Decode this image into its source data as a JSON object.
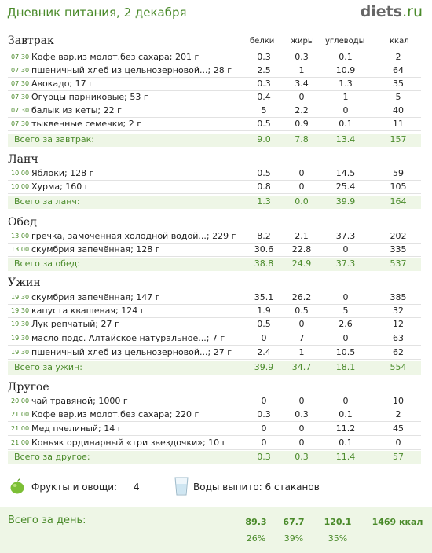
{
  "header": {
    "title": "Дневник питания, 2 декабря",
    "logo_main": "diets",
    "logo_tld": ".ru"
  },
  "columns": {
    "protein": "белки",
    "fat": "жиры",
    "carbs": "углеводы",
    "kcal": "ккал"
  },
  "breakfast": {
    "title": "Завтрак",
    "items": [
      {
        "time": "07:30",
        "name": "Кофе вар.из молот.без сахара; 201 г",
        "p": "0.3",
        "f": "0.3",
        "c": "0.1",
        "k": "2"
      },
      {
        "time": "07:30",
        "name": "пшеничный хлеб из цельнозерновой...; 28 г",
        "p": "2.5",
        "f": "1",
        "c": "10.9",
        "k": "64"
      },
      {
        "time": "07:30",
        "name": "Авокадо; 17 г",
        "p": "0.3",
        "f": "3.4",
        "c": "1.3",
        "k": "35"
      },
      {
        "time": "07:30",
        "name": "Огурцы парниковые; 53 г",
        "p": "0.4",
        "f": "0",
        "c": "1",
        "k": "5"
      },
      {
        "time": "07:30",
        "name": "балык из кеты; 22 г",
        "p": "5",
        "f": "2.2",
        "c": "0",
        "k": "40"
      },
      {
        "time": "07:30",
        "name": "тыквенные семечки; 2 г",
        "p": "0.5",
        "f": "0.9",
        "c": "0.1",
        "k": "11"
      }
    ],
    "total": {
      "label": "Всего за завтрак:",
      "p": "9.0",
      "f": "7.8",
      "c": "13.4",
      "k": "157"
    }
  },
  "lunch": {
    "title": "Ланч",
    "items": [
      {
        "time": "10:00",
        "name": "Яблоки; 128 г",
        "p": "0.5",
        "f": "0",
        "c": "14.5",
        "k": "59"
      },
      {
        "time": "10:00",
        "name": "Хурма; 160 г",
        "p": "0.8",
        "f": "0",
        "c": "25.4",
        "k": "105"
      }
    ],
    "total": {
      "label": "Всего за ланч:",
      "p": "1.3",
      "f": "0.0",
      "c": "39.9",
      "k": "164"
    }
  },
  "dinner": {
    "title": "Обед",
    "items": [
      {
        "time": "13:00",
        "name": "гречка, замоченная холодной водой...; 229 г",
        "p": "8.2",
        "f": "2.1",
        "c": "37.3",
        "k": "202"
      },
      {
        "time": "13:00",
        "name": "скумбрия запечённая; 128 г",
        "p": "30.6",
        "f": "22.8",
        "c": "0",
        "k": "335"
      }
    ],
    "total": {
      "label": "Всего за обед:",
      "p": "38.8",
      "f": "24.9",
      "c": "37.3",
      "k": "537"
    }
  },
  "supper": {
    "title": "Ужин",
    "items": [
      {
        "time": "19:30",
        "name": "скумбрия запечённая; 147 г",
        "p": "35.1",
        "f": "26.2",
        "c": "0",
        "k": "385"
      },
      {
        "time": "19:30",
        "name": "капуста квашеная; 124 г",
        "p": "1.9",
        "f": "0.5",
        "c": "5",
        "k": "32"
      },
      {
        "time": "19:30",
        "name": "Лук репчатый; 27 г",
        "p": "0.5",
        "f": "0",
        "c": "2.6",
        "k": "12"
      },
      {
        "time": "19:30",
        "name": "масло подс. Алтайское натуральное...; 7 г",
        "p": "0",
        "f": "7",
        "c": "0",
        "k": "63"
      },
      {
        "time": "19:30",
        "name": "пшеничный хлеб из цельнозерновой...; 27 г",
        "p": "2.4",
        "f": "1",
        "c": "10.5",
        "k": "62"
      }
    ],
    "total": {
      "label": "Всего за ужин:",
      "p": "39.9",
      "f": "34.7",
      "c": "18.1",
      "k": "554"
    }
  },
  "other": {
    "title": "Другое",
    "items": [
      {
        "time": "20:00",
        "name": "чай травяной; 1000 г",
        "p": "0",
        "f": "0",
        "c": "0",
        "k": "10"
      },
      {
        "time": "21:00",
        "name": "Кофе вар.из молот.без сахара; 220 г",
        "p": "0.3",
        "f": "0.3",
        "c": "0.1",
        "k": "2"
      },
      {
        "time": "21:00",
        "name": "Мед пчелиный; 14 г",
        "p": "0",
        "f": "0",
        "c": "11.2",
        "k": "45"
      },
      {
        "time": "21:00",
        "name": "Коньяк ординарный «три звездочки»; 10 г",
        "p": "0",
        "f": "0",
        "c": "0.1",
        "k": "0"
      }
    ],
    "total": {
      "label": "Всего за другое:",
      "p": "0.3",
      "f": "0.3",
      "c": "11.4",
      "k": "57"
    }
  },
  "extras": {
    "fruits_label": "Фрукты и овощи:",
    "fruits_value": "4",
    "water_label": "Воды выпито: 6 стаканов"
  },
  "day_total": {
    "label": "Всего за день:",
    "p": "89.3",
    "f": "67.7",
    "c": "120.1",
    "kcal": "1469 ккал",
    "p_pct": "26%",
    "f_pct": "39%",
    "c_pct": "35%"
  },
  "colors": {
    "accent": "#4a8a2a",
    "total_bg": "#eef6e6"
  }
}
